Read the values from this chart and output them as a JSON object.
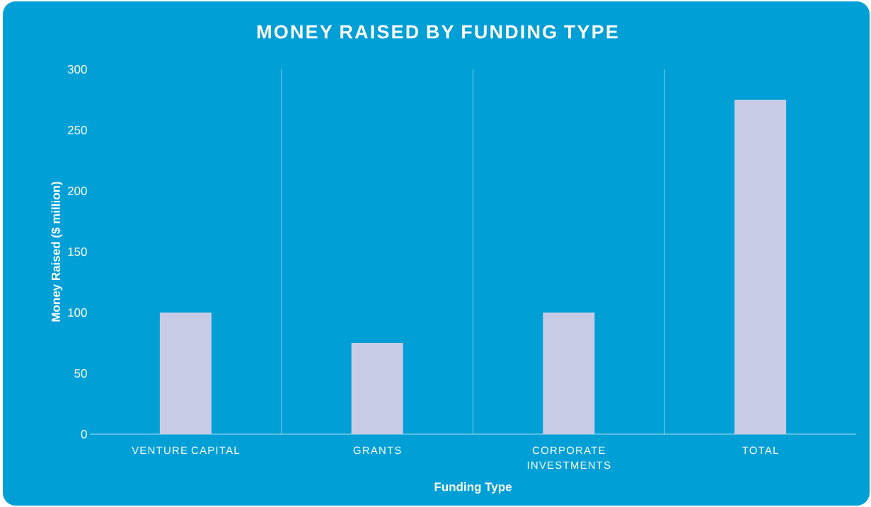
{
  "chart_data": {
    "type": "bar",
    "title": "MONEY RAISED BY FUNDING TYPE",
    "xlabel": "Funding Type",
    "ylabel": "Money Raised ($ million)",
    "categories": [
      "VENTURE CAPITAL",
      "GRANTS",
      "CORPORATE INVESTMENTS",
      "TOTAL"
    ],
    "values": [
      100,
      75,
      100,
      275
    ],
    "color": "#c8cbe6",
    "ylim": [
      0,
      300
    ],
    "yticks": [
      0,
      50,
      100,
      150,
      200,
      250,
      300
    ],
    "grid": "x"
  }
}
